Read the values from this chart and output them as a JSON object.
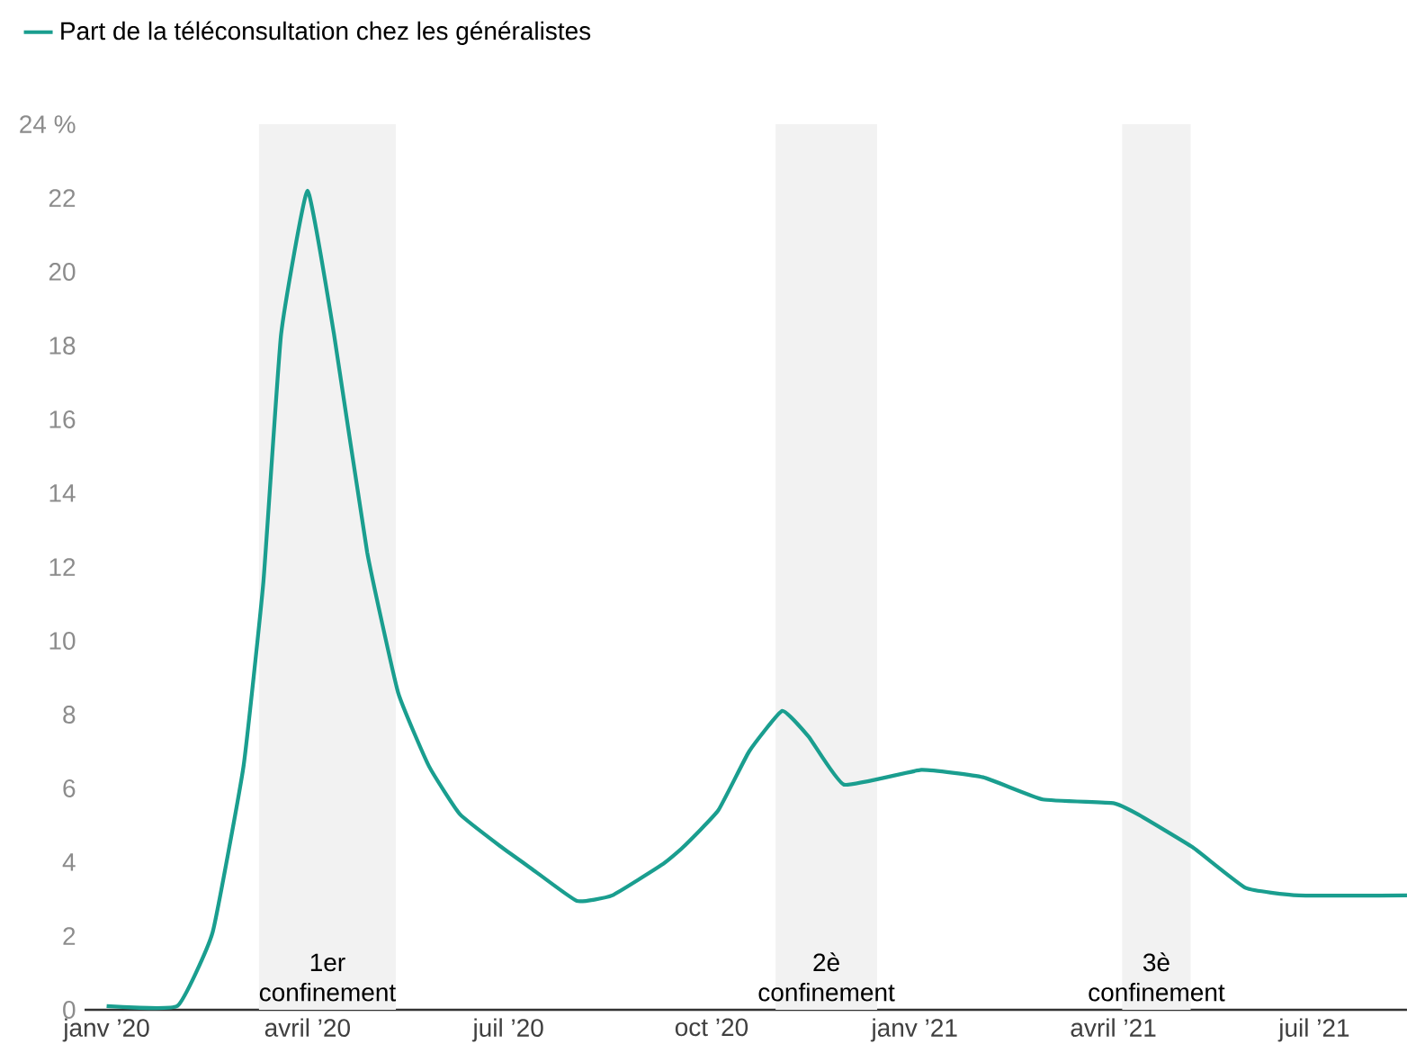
{
  "chart_data": {
    "type": "line",
    "x": [
      "2020-01-01",
      "2020-02-02",
      "2020-02-18",
      "2020-03-03",
      "2020-03-12",
      "2020-03-20",
      "2020-04-01",
      "2020-04-13",
      "2020-04-28",
      "2020-05-12",
      "2020-05-26",
      "2020-06-09",
      "2020-06-28",
      "2020-07-12",
      "2020-08-01",
      "2020-08-17",
      "2020-09-09",
      "2020-09-18",
      "2020-10-04",
      "2020-10-18",
      "2020-11-02",
      "2020-11-14",
      "2020-11-30",
      "2021-01-04",
      "2021-02-01",
      "2021-02-28",
      "2021-04-01",
      "2021-04-12",
      "2021-05-07",
      "2021-05-31",
      "2021-06-24",
      "2021-08-12"
    ],
    "series": [
      {
        "name": "Part de la téléconsultation chez les généralistes",
        "color": "#1a9e8f",
        "values": [
          0.1,
          0.1,
          2.1,
          6.6,
          11.6,
          18.3,
          22.2,
          18.3,
          12.4,
          8.6,
          6.6,
          5.3,
          4.4,
          3.8,
          2.95,
          3.1,
          3.95,
          4.4,
          5.4,
          7.0,
          8.1,
          7.4,
          6.1,
          6.5,
          6.3,
          5.7,
          5.6,
          5.3,
          4.4,
          3.3,
          3.1,
          3.1
        ]
      }
    ],
    "xlim": [
      "2019-12-22",
      "2021-08-12"
    ],
    "xticks": [
      {
        "value": "2020-01-01",
        "label": "janv ’20"
      },
      {
        "value": "2020-04-01",
        "label": "avril ’20"
      },
      {
        "value": "2020-07-01",
        "label": "juil ’20"
      },
      {
        "value": "2020-10-01",
        "label": "oct ’20"
      },
      {
        "value": "2021-01-01",
        "label": "janv ’21"
      },
      {
        "value": "2021-04-01",
        "label": "avril ’21"
      },
      {
        "value": "2021-07-01",
        "label": "juil ’21"
      }
    ],
    "ylim": [
      0,
      24
    ],
    "yticks": [
      0,
      2,
      4,
      6,
      8,
      10,
      12,
      14,
      16,
      18,
      20,
      22,
      {
        "value": 24,
        "label": "24 %"
      }
    ],
    "bands": [
      {
        "axis": "x",
        "from": "2020-03-10",
        "to": "2020-05-11",
        "label": "1er confinement",
        "color": "#f2f2f2"
      },
      {
        "axis": "x",
        "from": "2020-10-30",
        "to": "2020-12-15",
        "label": "2è confinement",
        "color": "#f2f2f2"
      },
      {
        "axis": "x",
        "from": "2021-04-05",
        "to": "2021-05-06",
        "label": "3è confinement",
        "color": "#f2f2f2"
      }
    ],
    "grid": false,
    "legend": "top left",
    "marker": "none",
    "line_style": "solid"
  }
}
